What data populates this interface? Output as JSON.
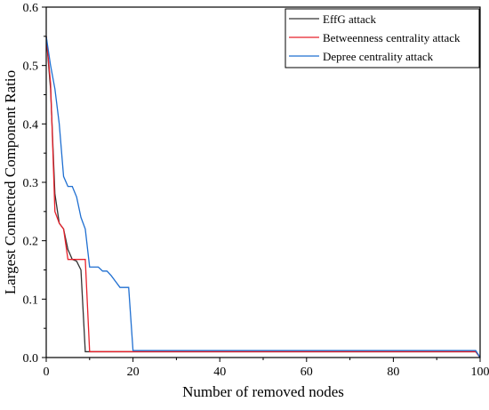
{
  "chart_data": {
    "type": "line",
    "xlabel": "Number of removed nodes",
    "ylabel": "Largest  Connected Component Ratio",
    "xlim": [
      0,
      100
    ],
    "ylim": [
      0,
      0.6
    ],
    "xticks": [
      0,
      20,
      40,
      60,
      80,
      100
    ],
    "yticks": [
      0.0,
      0.1,
      0.2,
      0.3,
      0.4,
      0.5,
      0.6
    ],
    "xtick_labels": [
      "0",
      "20",
      "40",
      "60",
      "80",
      "100"
    ],
    "ytick_labels": [
      "0.0",
      "0.1",
      "0.2",
      "0.3",
      "0.4",
      "0.5",
      "0.6"
    ],
    "grid": false,
    "legend_position": "top-right",
    "series": [
      {
        "name": "EffG attack",
        "color": "#333333",
        "x": [
          0,
          1,
          2,
          3,
          4,
          5,
          6,
          7,
          8,
          9,
          10,
          12,
          15,
          20,
          40,
          60,
          80,
          99,
          100
        ],
        "y": [
          0.55,
          0.46,
          0.28,
          0.23,
          0.22,
          0.185,
          0.168,
          0.165,
          0.15,
          0.01,
          0.01,
          0.01,
          0.01,
          0.01,
          0.01,
          0.01,
          0.01,
          0.01,
          0.0
        ]
      },
      {
        "name": "Betweenness centrality attack",
        "color": "#e8202a",
        "x": [
          0,
          1,
          2,
          3,
          4,
          5,
          6,
          7,
          8,
          9,
          10,
          12,
          15,
          20,
          40,
          60,
          80,
          99,
          100
        ],
        "y": [
          0.55,
          0.47,
          0.25,
          0.23,
          0.22,
          0.168,
          0.168,
          0.168,
          0.168,
          0.168,
          0.01,
          0.01,
          0.01,
          0.01,
          0.01,
          0.01,
          0.01,
          0.01,
          0.0
        ]
      },
      {
        "name": "Depree centrality attack",
        "color": "#1f6fd1",
        "x": [
          0,
          1,
          2,
          3,
          4,
          5,
          6,
          7,
          8,
          9,
          10,
          11,
          12,
          13,
          14,
          15,
          16,
          17,
          18,
          19,
          20,
          21,
          40,
          60,
          80,
          99,
          100
        ],
        "y": [
          0.55,
          0.5,
          0.46,
          0.4,
          0.31,
          0.293,
          0.293,
          0.275,
          0.24,
          0.22,
          0.155,
          0.155,
          0.155,
          0.148,
          0.148,
          0.14,
          0.13,
          0.12,
          0.12,
          0.12,
          0.012,
          0.012,
          0.012,
          0.012,
          0.012,
          0.012,
          0.0
        ]
      }
    ]
  }
}
